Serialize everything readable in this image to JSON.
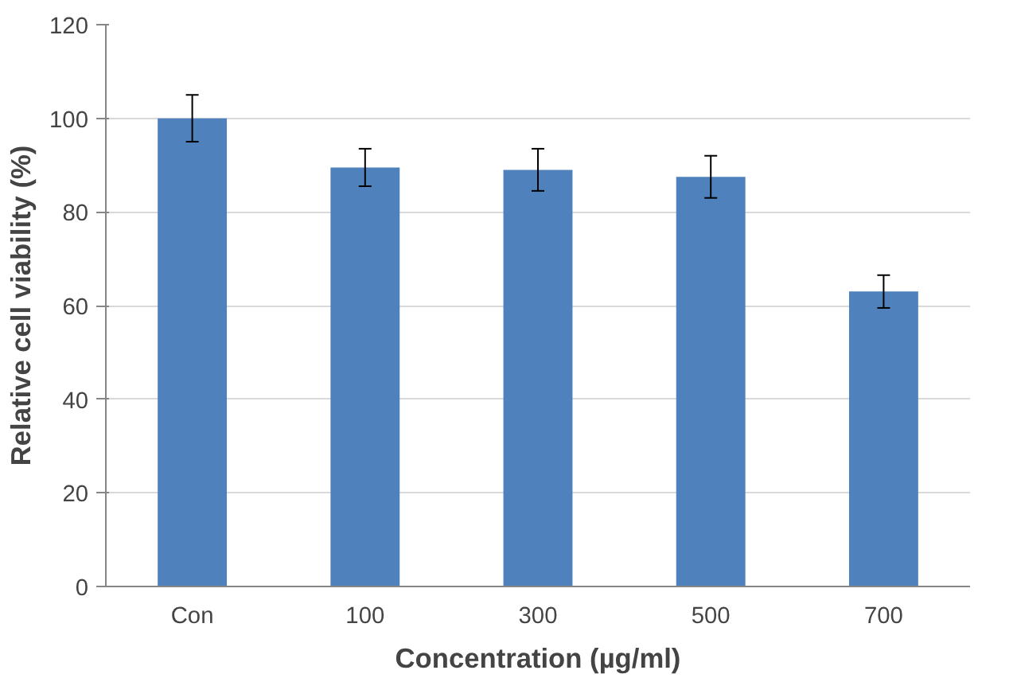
{
  "chart_data": {
    "type": "bar",
    "xlabel": "Concentration (µg/ml)",
    "ylabel": "Relative cell viability (%)",
    "categories": [
      "Con",
      "100",
      "300",
      "500",
      "700"
    ],
    "values": [
      100,
      89.5,
      89,
      87.5,
      63
    ],
    "errors": [
      5,
      4,
      4.5,
      4.5,
      3.5
    ],
    "color": "#4f81bd",
    "ylim": [
      0,
      120
    ],
    "yticks": [
      0,
      20,
      40,
      60,
      80,
      100,
      120
    ],
    "grid": "y"
  }
}
